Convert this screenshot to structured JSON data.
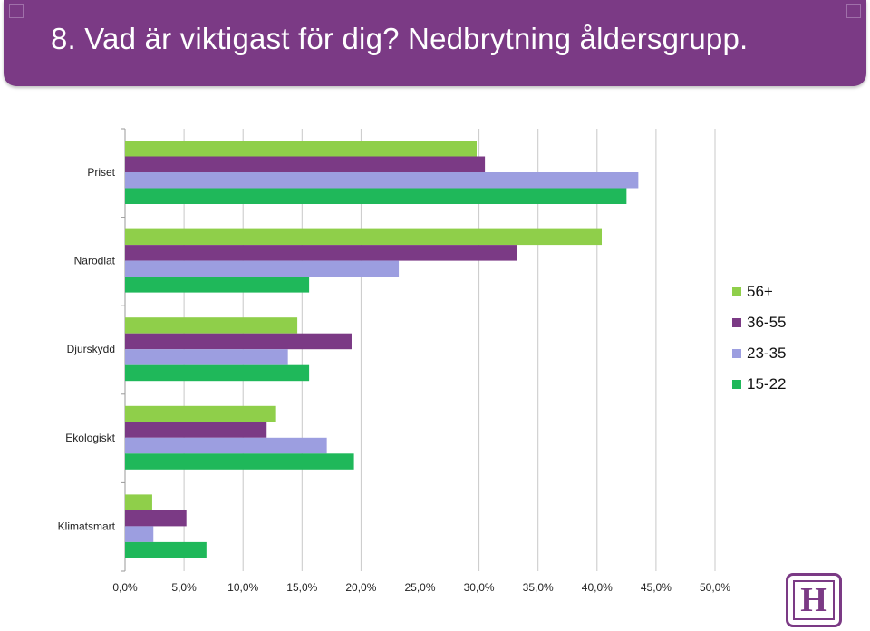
{
  "slide": {
    "title": "8. Vad är viktigast för dig? Nedbrytning åldersgrupp.",
    "logo_letter": "H"
  },
  "colors": {
    "header": "#7b3a85",
    "gridline": "#c8c8c8"
  },
  "chart_data": {
    "type": "bar",
    "orientation": "horizontal",
    "categories": [
      "Priset",
      "Närodlat",
      "Djurskydd",
      "Ekologiskt",
      "Klimatsmart"
    ],
    "series": [
      {
        "name": "56+",
        "color": "#8fcf4a",
        "values": [
          29.8,
          40.4,
          14.6,
          12.8,
          2.3
        ]
      },
      {
        "name": "36-55",
        "color": "#7b3a85",
        "values": [
          30.5,
          33.2,
          19.2,
          12.0,
          5.2
        ]
      },
      {
        "name": "23-35",
        "color": "#9c9ee0",
        "values": [
          43.5,
          23.2,
          13.8,
          17.1,
          2.4
        ]
      },
      {
        "name": "15-22",
        "color": "#1fb85a",
        "values": [
          42.5,
          15.6,
          15.6,
          19.4,
          6.9
        ]
      }
    ],
    "xlim": [
      0,
      50
    ],
    "xticks": [
      "0,0%",
      "5,0%",
      "10,0%",
      "15,0%",
      "20,0%",
      "25,0%",
      "30,0%",
      "35,0%",
      "40,0%",
      "45,0%",
      "50,0%"
    ],
    "grid": true,
    "legend_position": "right",
    "xlabel": "",
    "ylabel": ""
  }
}
